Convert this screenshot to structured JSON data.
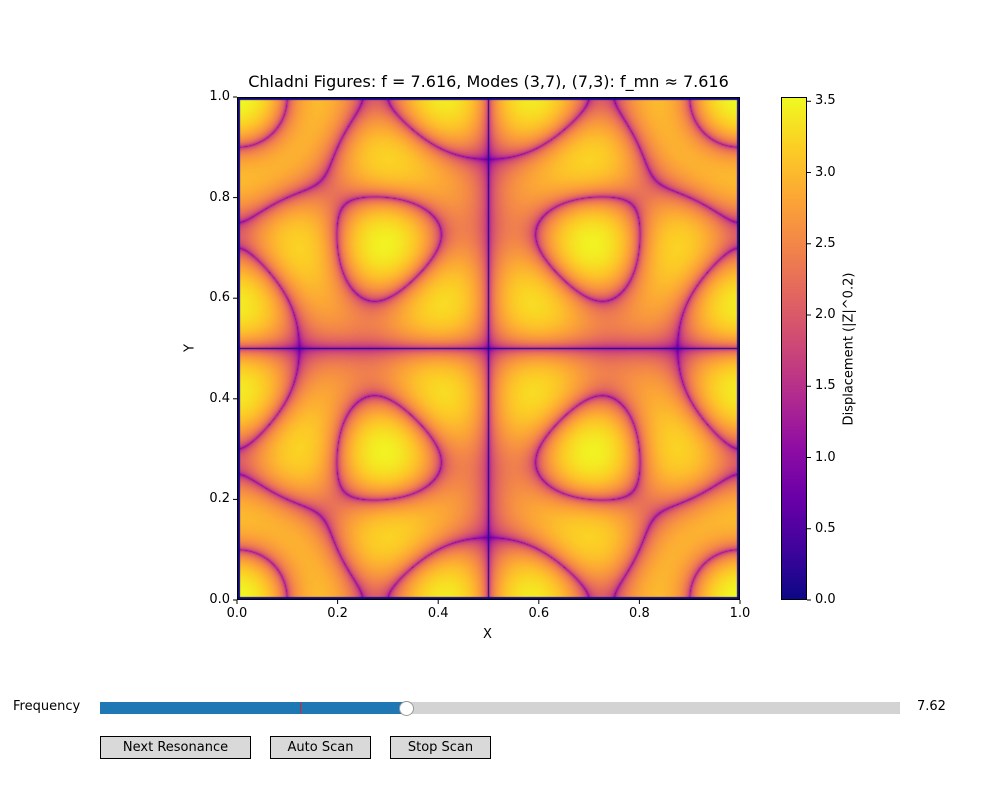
{
  "chart_data": {
    "type": "heatmap",
    "title": "Chladni Figures: f = 7.616, Modes (3,7), (7,3): f_mn ≈ 7.616",
    "xlabel": "X",
    "ylabel": "Y",
    "xlim": [
      0,
      1
    ],
    "ylim": [
      0,
      1
    ],
    "x_ticks": [
      "0.0",
      "0.2",
      "0.4",
      "0.6",
      "0.8",
      "1.0"
    ],
    "y_ticks": [
      "0.0",
      "0.2",
      "0.4",
      "0.6",
      "0.8",
      "1.0"
    ],
    "modes": [
      [
        3,
        7
      ],
      [
        7,
        3
      ]
    ],
    "transform_exponent": 0.2,
    "colormap": "plasma",
    "colorbar": {
      "label": "Displacement (|Z|^0.2)",
      "range": [
        0,
        3.53
      ],
      "ticks": [
        "0.0",
        "0.5",
        "1.0",
        "1.5",
        "2.0",
        "2.5",
        "3.0",
        "3.5"
      ],
      "tick_values": [
        0,
        0.5,
        1.0,
        1.5,
        2.0,
        2.5,
        3.0,
        3.5
      ]
    }
  },
  "controls": {
    "frequency_label": "Frequency",
    "frequency_value": "7.62",
    "slider_fraction": 0.382,
    "marker_fraction": 0.25,
    "slider_colors": {
      "fill": "#1f77b4",
      "track": "#d3d3d3",
      "marker": "#d62728"
    },
    "buttons": {
      "next_resonance": "Next Resonance",
      "auto_scan": "Auto Scan",
      "stop_scan": "Stop Scan"
    }
  }
}
